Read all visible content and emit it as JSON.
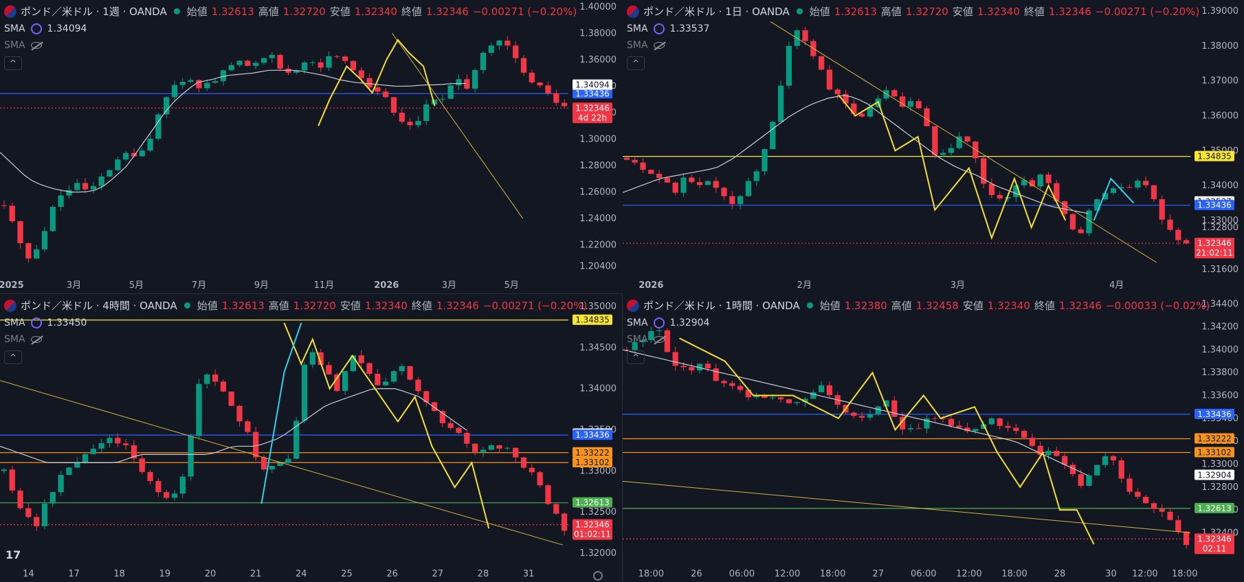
{
  "icons": {
    "flag": "gbp-usd-flag-icon",
    "status": "market-open-dot-icon",
    "sma": "sma-indicator-icon",
    "hidden": "hidden-eye-icon",
    "collapse": "chevron-up-icon",
    "logo": "tradingview-logo-icon",
    "gear": "settings-gear-icon"
  },
  "colors": {
    "bg": "#131722",
    "up": "#089981",
    "down": "#f23645",
    "sma": "#c9cdd6",
    "pattern": "#f5e12a",
    "trend": "#d4b43c",
    "blue": "#2962ff",
    "yellow": "#f9e62f",
    "orange": "#f7931a",
    "green": "#4caf50",
    "cyan": "#2ad4f0"
  },
  "panels": [
    {
      "symbol": "ポンド／米ドル · 1週 · OANDA",
      "open": "1.32613",
      "high": "1.32720",
      "low": "1.32340",
      "close": "1.32346",
      "change": "−0.00271 (−0.20%)",
      "sma_label": "SMA",
      "sma_value": "1.34094",
      "collapse_label": "^",
      "price_badge": "1.32346",
      "countdown": "4d 22h"
    },
    {
      "symbol": "ポンド／米ドル · 1日 · OANDA",
      "open": "1.32613",
      "high": "1.32720",
      "low": "1.32340",
      "close": "1.32346",
      "change": "−0.00271 (−0.20%)",
      "sma_label": "SMA",
      "sma_value": "1.33537",
      "collapse_label": "^",
      "price_badge": "1.32346",
      "countdown": "21:02:11"
    },
    {
      "symbol": "ポンド／米ドル · 4時間 · OANDA",
      "open": "1.32613",
      "high": "1.32720",
      "low": "1.32340",
      "close": "1.32346",
      "change": "−0.00271 (−0.20%)",
      "sma_label": "SMA",
      "sma_value": "1.33450",
      "collapse_label": "^",
      "price_badge": "1.32346",
      "countdown": "01:02:11",
      "logo": "17"
    },
    {
      "symbol": "ポンド／米ドル · 1時間 · OANDA",
      "open": "1.32380",
      "high": "1.32458",
      "low": "1.32340",
      "close": "1.32346",
      "change": "−0.00033 (−0.02%)",
      "sma_label": "SMA",
      "sma_value": "1.32904",
      "collapse_label": "^",
      "price_badge": "1.32346",
      "countdown": "02:11"
    }
  ],
  "labels": {
    "open": "始値",
    "high": "高値",
    "low": "安値",
    "close": "終値"
  },
  "chart_data": [
    {
      "type": "candlestick",
      "ylim": [
        1.199,
        1.402
      ],
      "yticks": [
        "1.40000",
        "1.38000",
        "1.36000",
        "1.34000",
        "1.32000",
        "1.30000",
        "1.28000",
        "1.26000",
        "1.24000",
        "1.22000",
        "1.20400"
      ],
      "ytick_values": [
        1.4,
        1.38,
        1.36,
        1.34,
        1.32,
        1.3,
        1.28,
        1.26,
        1.24,
        1.22,
        1.204
      ],
      "xticks": [
        "2025",
        "3月",
        "5月",
        "7月",
        "9月",
        "11月",
        "2026",
        "3月",
        "5月"
      ],
      "xtick_fracs": [
        0.02,
        0.13,
        0.24,
        0.35,
        0.46,
        0.57,
        0.68,
        0.79,
        0.9
      ],
      "path": [
        1.25,
        1.23,
        1.21,
        1.22,
        1.25,
        1.26,
        1.265,
        1.26,
        1.27,
        1.28,
        1.29,
        1.285,
        1.3,
        1.33,
        1.34,
        1.345,
        1.34,
        1.342,
        1.35,
        1.36,
        1.355,
        1.36,
        1.365,
        1.35,
        1.35,
        1.36,
        1.355,
        1.365,
        1.36,
        1.35,
        1.34,
        1.335,
        1.32,
        1.31,
        1.315,
        1.33,
        1.33,
        1.345,
        1.34,
        1.36,
        1.37,
        1.375,
        1.36,
        1.345,
        1.34,
        1.33,
        1.325
      ],
      "sma_path": [
        1.29,
        1.28,
        1.27,
        1.265,
        1.262,
        1.26,
        1.26,
        1.262,
        1.27,
        1.28,
        1.295,
        1.31,
        1.325,
        1.335,
        1.343,
        1.345,
        1.348,
        1.349,
        1.35,
        1.352,
        1.352,
        1.352,
        1.35,
        1.348,
        1.345,
        1.343,
        1.342,
        1.341,
        1.34,
        1.34,
        1.341,
        1.341,
        1.342,
        1.342
      ],
      "hlines": [
        {
          "value": 1.33436,
          "color": "blue",
          "badge": "1.33436",
          "style": "solid"
        },
        {
          "value": 1.34094,
          "color": "white",
          "badge": "1.34094",
          "style": "none"
        },
        {
          "value": 1.32346,
          "color": "red",
          "badge": "1.32346",
          "style": "dotted"
        }
      ],
      "pattern": [
        [
          0.56,
          1.31
        ],
        [
          0.58,
          1.33
        ],
        [
          0.61,
          1.355
        ],
        [
          0.635,
          1.345
        ],
        [
          0.655,
          1.335
        ],
        [
          0.68,
          1.36
        ],
        [
          0.7,
          1.375
        ],
        [
          0.72,
          1.365
        ],
        [
          0.745,
          1.355
        ],
        [
          0.765,
          1.325
        ]
      ],
      "trend": [
        [
          0.69,
          1.38
        ],
        [
          0.92,
          1.24
        ]
      ]
    },
    {
      "type": "candlestick",
      "ylim": [
        1.315,
        1.392
      ],
      "yticks": [
        "1.39000",
        "1.38000",
        "1.37000",
        "1.36000",
        "1.35000",
        "1.34000",
        "1.33000",
        "1.32800",
        "1.31600"
      ],
      "ytick_values": [
        1.39,
        1.38,
        1.37,
        1.36,
        1.35,
        1.34,
        1.33,
        1.328,
        1.316
      ],
      "xticks": [
        "2026",
        "2月",
        "3月",
        "4月"
      ],
      "xtick_fracs": [
        0.05,
        0.32,
        0.59,
        0.87
      ],
      "path": [
        1.348,
        1.346,
        1.344,
        1.342,
        1.338,
        1.343,
        1.34,
        1.342,
        1.338,
        1.335,
        1.34,
        1.345,
        1.355,
        1.37,
        1.385,
        1.382,
        1.375,
        1.368,
        1.365,
        1.36,
        1.36,
        1.365,
        1.368,
        1.362,
        1.365,
        1.36,
        1.348,
        1.35,
        1.355,
        1.35,
        1.34,
        1.336,
        1.336,
        1.342,
        1.34,
        1.345,
        1.336,
        1.33,
        1.325,
        1.334,
        1.338,
        1.34,
        1.338,
        1.342,
        1.338,
        1.33,
        1.326,
        1.323
      ],
      "sma_path": [
        1.338,
        1.34,
        1.342,
        1.343,
        1.344,
        1.345,
        1.348,
        1.352,
        1.356,
        1.36,
        1.363,
        1.365,
        1.366,
        1.364,
        1.36,
        1.356,
        1.352,
        1.348,
        1.345,
        1.343,
        1.34,
        1.338,
        1.336,
        1.334,
        1.333,
        1.332
      ],
      "hlines": [
        {
          "value": 1.34835,
          "color": "yellow",
          "badge": "1.34835",
          "style": "solid"
        },
        {
          "value": 1.33537,
          "color": "white",
          "badge": "1.33537",
          "style": "none"
        },
        {
          "value": 1.33436,
          "color": "blue",
          "badge": "1.33436",
          "style": "solid"
        },
        {
          "value": 1.32346,
          "color": "red",
          "badge": "1.32346",
          "style": "dotted"
        }
      ],
      "pattern": [
        [
          0.38,
          1.366
        ],
        [
          0.41,
          1.36
        ],
        [
          0.45,
          1.364
        ],
        [
          0.48,
          1.35
        ],
        [
          0.52,
          1.354
        ],
        [
          0.55,
          1.333
        ],
        [
          0.61,
          1.345
        ],
        [
          0.65,
          1.325
        ],
        [
          0.69,
          1.342
        ],
        [
          0.72,
          1.328
        ],
        [
          0.75,
          1.34
        ],
        [
          0.78,
          1.33
        ]
      ],
      "cyan": [
        [
          0.83,
          1.33
        ],
        [
          0.86,
          1.342
        ],
        [
          0.9,
          1.335
        ]
      ],
      "trend": [
        [
          0.26,
          1.387
        ],
        [
          0.94,
          1.318
        ]
      ]
    },
    {
      "type": "candlestick",
      "ylim": [
        1.319,
        1.351
      ],
      "yticks": [
        "1.35000",
        "1.34500",
        "1.34000",
        "1.33500",
        "1.33000",
        "1.32500",
        "1.32000"
      ],
      "ytick_values": [
        1.35,
        1.345,
        1.34,
        1.335,
        1.33,
        1.325,
        1.32
      ],
      "xticks": [
        "14",
        "17",
        "18",
        "19",
        "20",
        "21",
        "24",
        "25",
        "26",
        "27",
        "28",
        "31"
      ],
      "xtick_fracs": [
        0.05,
        0.13,
        0.21,
        0.29,
        0.37,
        0.45,
        0.53,
        0.61,
        0.69,
        0.77,
        0.85,
        0.93
      ],
      "path": [
        1.33,
        1.326,
        1.323,
        1.327,
        1.33,
        1.331,
        1.333,
        1.334,
        1.333,
        1.33,
        1.328,
        1.326,
        1.33,
        1.342,
        1.341,
        1.338,
        1.335,
        1.33,
        1.331,
        1.332,
        1.345,
        1.343,
        1.34,
        1.344,
        1.342,
        1.34,
        1.343,
        1.341,
        1.338,
        1.336,
        1.335,
        1.332,
        1.333,
        1.333,
        1.331,
        1.33,
        1.326,
        1.323
      ],
      "sma_path": [
        1.333,
        1.332,
        1.331,
        1.331,
        1.331,
        1.331,
        1.332,
        1.332,
        1.332,
        1.332,
        1.333,
        1.333,
        1.334,
        1.336,
        1.338,
        1.339,
        1.34,
        1.34,
        1.339,
        1.337,
        1.335
      ],
      "hlines": [
        {
          "value": 1.34835,
          "color": "yellow",
          "badge": "1.34835",
          "style": "solid"
        },
        {
          "value": 1.3345,
          "color": "white",
          "badge": "1.33450",
          "style": "none"
        },
        {
          "value": 1.33436,
          "color": "blue",
          "badge": "1.33436",
          "style": "solid"
        },
        {
          "value": 1.33222,
          "color": "orange",
          "badge": "1.33222",
          "style": "solid"
        },
        {
          "value": 1.33102,
          "color": "orange",
          "badge": "1.33102",
          "style": "solid"
        },
        {
          "value": 1.32613,
          "color": "green",
          "badge": "1.32613",
          "style": "solid"
        },
        {
          "value": 1.32346,
          "color": "red",
          "badge": "1.32346",
          "style": "dotted"
        }
      ],
      "pattern": [
        [
          0.5,
          1.348
        ],
        [
          0.53,
          1.343
        ],
        [
          0.55,
          1.346
        ],
        [
          0.58,
          1.34
        ],
        [
          0.62,
          1.344
        ],
        [
          0.66,
          1.34
        ],
        [
          0.7,
          1.336
        ],
        [
          0.73,
          1.339
        ],
        [
          0.76,
          1.333
        ],
        [
          0.8,
          1.328
        ],
        [
          0.83,
          1.331
        ],
        [
          0.86,
          1.323
        ]
      ],
      "cyan": [
        [
          0.46,
          1.326
        ],
        [
          0.5,
          1.342
        ],
        [
          0.53,
          1.348
        ]
      ],
      "trend": [
        [
          0.0,
          1.341
        ],
        [
          0.99,
          1.321
        ]
      ]
    },
    {
      "type": "candlestick",
      "ylim": [
        1.3215,
        1.3445
      ],
      "yticks": [
        "1.34400",
        "1.34200",
        "1.34000",
        "1.33800",
        "1.33600",
        "1.33400",
        "1.33200",
        "1.33000",
        "1.32800",
        "1.32600",
        "1.32400"
      ],
      "ytick_values": [
        1.344,
        1.342,
        1.34,
        1.338,
        1.336,
        1.334,
        1.332,
        1.33,
        1.328,
        1.326,
        1.324
      ],
      "xticks": [
        "18:00",
        "26",
        "06:00",
        "12:00",
        "18:00",
        "27",
        "06:00",
        "12:00",
        "18:00",
        "28",
        "30",
        "12:00",
        "18:00"
      ],
      "xtick_fracs": [
        0.05,
        0.13,
        0.21,
        0.29,
        0.37,
        0.45,
        0.53,
        0.61,
        0.69,
        0.77,
        0.86,
        0.92,
        0.99
      ],
      "path": [
        1.34,
        1.341,
        1.342,
        1.339,
        1.338,
        1.339,
        1.337,
        1.337,
        1.336,
        1.336,
        1.336,
        1.335,
        1.336,
        1.337,
        1.335,
        1.334,
        1.334,
        1.336,
        1.333,
        1.333,
        1.334,
        1.334,
        1.333,
        1.333,
        1.334,
        1.333,
        1.333,
        1.331,
        1.331,
        1.33,
        1.328,
        1.33,
        1.331,
        1.328,
        1.327,
        1.326,
        1.325,
        1.323
      ],
      "sma_path": [
        1.34,
        1.3395,
        1.339,
        1.3385,
        1.338,
        1.3375,
        1.337,
        1.3365,
        1.336,
        1.3355,
        1.335,
        1.3345,
        1.334,
        1.3335,
        1.333,
        1.3325,
        1.332,
        1.331,
        1.33,
        1.329
      ],
      "hlines": [
        {
          "value": 1.33436,
          "color": "blue",
          "badge": "1.33436",
          "style": "solid"
        },
        {
          "value": 1.33222,
          "color": "orange",
          "badge": "1.33222",
          "style": "solid"
        },
        {
          "value": 1.33102,
          "color": "orange",
          "badge": "1.33102",
          "style": "solid"
        },
        {
          "value": 1.32904,
          "color": "white",
          "badge": "1.32904",
          "style": "none"
        },
        {
          "value": 1.32613,
          "color": "green",
          "badge": "1.32613",
          "style": "solid"
        },
        {
          "value": 1.32346,
          "color": "red",
          "badge": "1.32346",
          "style": "dotted"
        }
      ],
      "pattern": [
        [
          0.1,
          1.341
        ],
        [
          0.18,
          1.339
        ],
        [
          0.23,
          1.336
        ],
        [
          0.3,
          1.336
        ],
        [
          0.38,
          1.334
        ],
        [
          0.44,
          1.338
        ],
        [
          0.48,
          1.333
        ],
        [
          0.53,
          1.336
        ],
        [
          0.56,
          1.334
        ],
        [
          0.62,
          1.335
        ],
        [
          0.66,
          1.331
        ],
        [
          0.7,
          1.328
        ],
        [
          0.74,
          1.331
        ],
        [
          0.77,
          1.326
        ],
        [
          0.8,
          1.326
        ],
        [
          0.83,
          1.323
        ]
      ],
      "trend": [
        [
          0.0,
          1.3285
        ],
        [
          1.0,
          1.324
        ]
      ]
    }
  ]
}
